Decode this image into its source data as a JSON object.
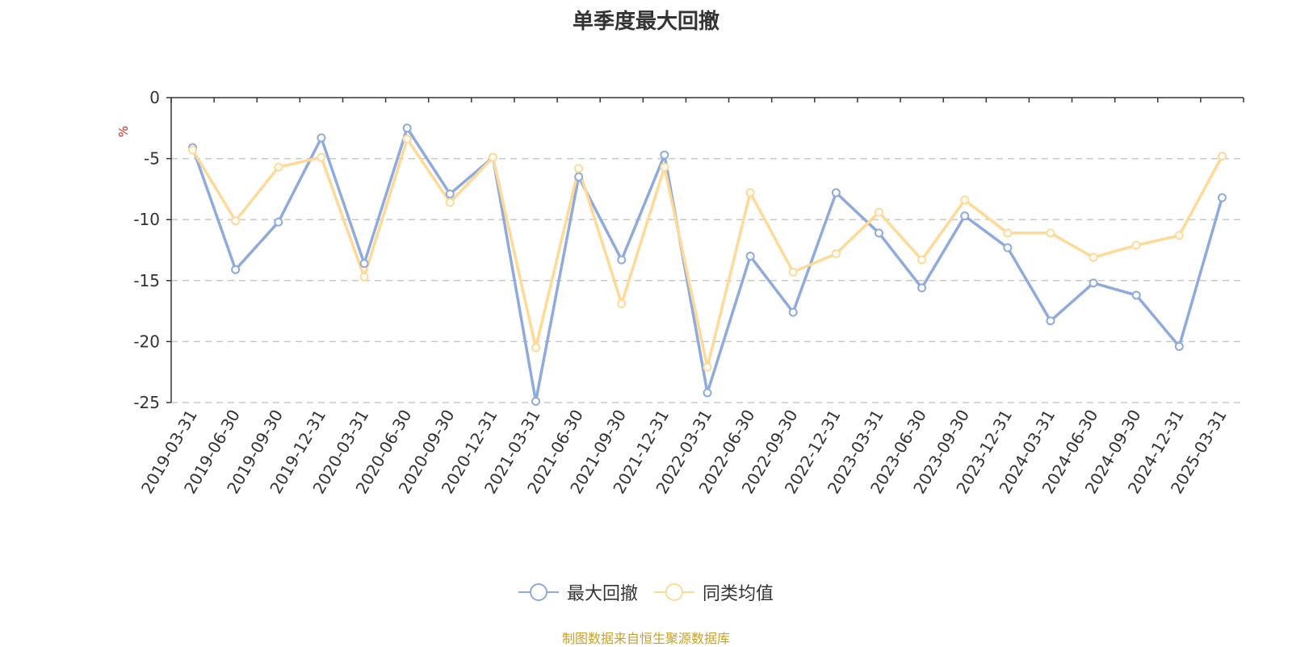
{
  "chart_data": {
    "type": "line",
    "title": "单季度最大回撤",
    "ylabel": "%",
    "ylim": [
      -25,
      0
    ],
    "yticks": [
      0,
      -5,
      -10,
      -15,
      -20,
      -25
    ],
    "grid": true,
    "legend_position": "bottom",
    "x": [
      "2019-03-31",
      "2019-06-30",
      "2019-09-30",
      "2019-12-31",
      "2020-03-31",
      "2020-06-30",
      "2020-09-30",
      "2020-12-31",
      "2021-03-31",
      "2021-06-30",
      "2021-09-30",
      "2021-12-31",
      "2022-03-31",
      "2022-06-30",
      "2022-09-30",
      "2022-12-31",
      "2023-03-31",
      "2023-06-30",
      "2023-09-30",
      "2023-12-31",
      "2024-03-31",
      "2024-06-30",
      "2024-09-30",
      "2024-12-31",
      "2025-03-31"
    ],
    "series": [
      {
        "name": "最大回撤",
        "color": "#8faadc",
        "values": [
          -4.1,
          -14.1,
          -10.2,
          -3.3,
          -13.6,
          -2.5,
          -7.9,
          -4.9,
          -24.9,
          -6.5,
          -13.3,
          -4.7,
          -24.2,
          -13.0,
          -17.6,
          -7.8,
          -11.1,
          -15.6,
          -9.7,
          -12.3,
          -18.3,
          -15.2,
          -16.2,
          -20.4,
          -8.2
        ]
      },
      {
        "name": "同类均值",
        "color": "#ffd996",
        "values": [
          -4.3,
          -10.1,
          -5.7,
          -4.9,
          -14.7,
          -3.4,
          -8.6,
          -4.9,
          -20.5,
          -5.8,
          -16.9,
          -5.7,
          -22.1,
          -7.8,
          -14.3,
          -12.8,
          -9.4,
          -13.3,
          -8.4,
          -11.1,
          -11.1,
          -13.1,
          -12.1,
          -11.3,
          -4.8
        ]
      }
    ]
  },
  "source_note": "制图数据来自恒生聚源数据库"
}
